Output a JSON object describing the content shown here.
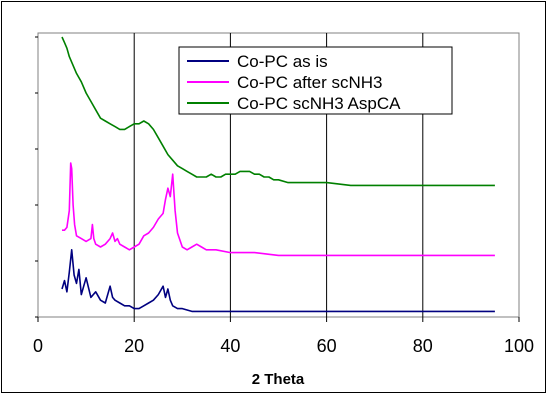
{
  "chart_data": {
    "type": "line",
    "title": "",
    "xlabel": "2 Theta",
    "ylabel": "",
    "xlim": [
      0,
      100
    ],
    "ylim": [
      0,
      100
    ],
    "x_ticks": [
      "0",
      "20",
      "40",
      "60",
      "80",
      "100"
    ],
    "y_tick_values": [
      0,
      20,
      40,
      60,
      80,
      100
    ],
    "grid": {
      "vertical": true,
      "horizontal": false
    },
    "legend_position": "top-right",
    "series": [
      {
        "name": "Co-PC as is",
        "color": "#000080",
        "x": [
          5.0,
          5.5,
          6.0,
          6.5,
          7.0,
          7.5,
          8.0,
          8.5,
          9.0,
          9.5,
          10.0,
          11.0,
          12.0,
          13.0,
          14.0,
          15.0,
          15.5,
          16.0,
          17.0,
          18.0,
          19.0,
          20.0,
          21.0,
          22.0,
          23.0,
          24.0,
          25.0,
          26.0,
          26.5,
          27.0,
          27.5,
          28.0,
          29.0,
          30.0,
          32.0,
          35.0,
          40.0,
          45.0,
          50.0,
          55.0,
          60.0,
          65.0,
          70.0,
          75.0,
          80.0,
          85.0,
          90.0,
          95.0
        ],
        "y": [
          10,
          13,
          9,
          16,
          24,
          15,
          12,
          17,
          8,
          11,
          14,
          7,
          9,
          6,
          5,
          11,
          7,
          6,
          5,
          4,
          4,
          3,
          3,
          4,
          5,
          6,
          8,
          11,
          7,
          10,
          6,
          4,
          3,
          3,
          2,
          2,
          2,
          2,
          2,
          2,
          2,
          2,
          2,
          2,
          2,
          2,
          2,
          2
        ]
      },
      {
        "name": "Co-PC after scNH3",
        "color": "#ff00ff",
        "x": [
          5.0,
          5.5,
          6.0,
          6.5,
          6.8,
          7.0,
          7.3,
          7.6,
          8.0,
          9.0,
          10.0,
          11.0,
          11.3,
          11.6,
          12.0,
          13.0,
          14.0,
          15.0,
          15.5,
          16.0,
          16.5,
          17.0,
          18.0,
          19.0,
          20.0,
          21.0,
          22.0,
          23.0,
          24.0,
          25.0,
          26.0,
          26.5,
          27.0,
          27.5,
          28.0,
          28.5,
          29.0,
          30.0,
          31.0,
          32.0,
          33.0,
          34.0,
          35.0,
          37.0,
          40.0,
          45.0,
          50.0,
          55.0,
          60.0,
          65.0,
          70.0,
          75.0,
          80.0,
          85.0,
          90.0,
          95.0
        ],
        "y": [
          31,
          31,
          32,
          38,
          55,
          53,
          40,
          33,
          29,
          28,
          27,
          28,
          33,
          28,
          26,
          25,
          26,
          28,
          30,
          27,
          28,
          26,
          25,
          24,
          25,
          26,
          29,
          30,
          32,
          35,
          37,
          42,
          46,
          43,
          51,
          38,
          30,
          25,
          24,
          25,
          26,
          25,
          24,
          24,
          23,
          23,
          22,
          22,
          22,
          22,
          22,
          22,
          22,
          22,
          22,
          22
        ]
      },
      {
        "name": "Co-PC scNH3 AspCA",
        "color": "#008000",
        "x": [
          5.0,
          5.5,
          6.0,
          6.5,
          7.0,
          7.5,
          8.0,
          9.0,
          10.0,
          11.0,
          12.0,
          13.0,
          14.0,
          15.0,
          16.0,
          17.0,
          18.0,
          19.0,
          20.0,
          21.0,
          22.0,
          23.0,
          24.0,
          25.0,
          26.0,
          27.0,
          28.0,
          29.0,
          30.0,
          31.0,
          32.0,
          33.0,
          34.0,
          35.0,
          36.0,
          37.0,
          38.0,
          39.0,
          40.0,
          41.0,
          42.0,
          43.0,
          44.0,
          45.0,
          46.0,
          47.0,
          48.0,
          49.0,
          50.0,
          52.0,
          55.0,
          60.0,
          65.0,
          70.0,
          75.0,
          80.0,
          85.0,
          90.0,
          95.0
        ],
        "y": [
          100,
          98,
          96,
          93,
          91,
          89,
          87,
          84,
          80,
          77,
          74,
          71,
          70,
          69,
          68,
          67,
          67,
          68,
          69,
          69,
          70,
          69,
          67,
          64,
          61,
          58,
          56,
          54,
          53,
          52,
          51,
          50,
          50,
          50,
          51,
          50,
          50,
          51,
          51,
          51,
          52,
          52,
          52,
          51,
          51,
          50,
          50,
          49,
          49,
          48,
          48,
          48,
          47,
          47,
          47,
          47,
          47,
          47,
          47
        ]
      }
    ]
  }
}
